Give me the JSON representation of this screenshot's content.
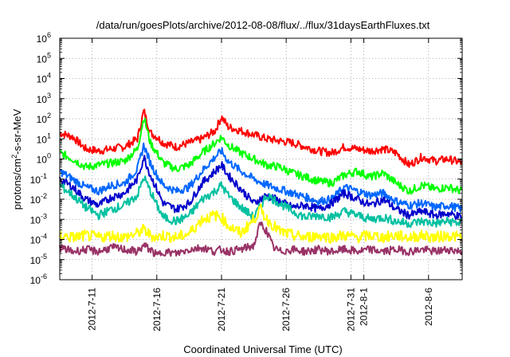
{
  "chart_data": {
    "type": "line",
    "title": "/data/run/goesPlots/archive/2012-08-08/flux/../flux/31daysEarthFluxes.txt",
    "xlabel": "Coordinated Universal Time (UTC)",
    "ylabel": "protons/cm2-s-sr-MeV",
    "ylabel_parts": {
      "pre": "protons/cm",
      "sup": "2",
      "post": "-s-sr-MeV"
    },
    "y_scale": "log",
    "ylim_exp": [
      -6,
      6
    ],
    "y_ticks": [
      {
        "exp": -6,
        "label": "-6"
      },
      {
        "exp": -5,
        "label": "-5"
      },
      {
        "exp": -4,
        "label": "-4"
      },
      {
        "exp": -3,
        "label": "-3"
      },
      {
        "exp": -2,
        "label": "-2"
      },
      {
        "exp": -1,
        "label": "-1"
      },
      {
        "exp": 0,
        "label": "0"
      },
      {
        "exp": 1,
        "label": "1"
      },
      {
        "exp": 2,
        "label": "2"
      },
      {
        "exp": 3,
        "label": "3"
      },
      {
        "exp": 4,
        "label": "4"
      },
      {
        "exp": 5,
        "label": "5"
      },
      {
        "exp": 6,
        "label": "6"
      }
    ],
    "y_tick_base": "10",
    "xlim_day": [
      8.5,
      39.6
    ],
    "x_ticks": [
      {
        "day": 11,
        "label": "2012-7-11"
      },
      {
        "day": 16,
        "label": "2012-7-16"
      },
      {
        "day": 21,
        "label": "2012-7-21"
      },
      {
        "day": 26,
        "label": "2012-7-26"
      },
      {
        "day": 31,
        "label": "2012-7-31"
      },
      {
        "day": 32,
        "label": "2012-8-1"
      },
      {
        "day": 37,
        "label": "2012-8-6"
      }
    ],
    "grid": true,
    "series": [
      {
        "color": "#ff0000",
        "log_values": [
          [
            8.5,
            1.3
          ],
          [
            9.5,
            1.1
          ],
          [
            10.5,
            0.5
          ],
          [
            11.5,
            0.4
          ],
          [
            12.5,
            0.5
          ],
          [
            13.5,
            0.6
          ],
          [
            14.5,
            1.0
          ],
          [
            15.0,
            2.4
          ],
          [
            15.5,
            1.3
          ],
          [
            16.0,
            1.1
          ],
          [
            16.5,
            0.8
          ],
          [
            17.5,
            0.6
          ],
          [
            18.5,
            0.8
          ],
          [
            19.5,
            1.0
          ],
          [
            20.5,
            1.4
          ],
          [
            21.0,
            2.1
          ],
          [
            21.5,
            1.6
          ],
          [
            22.5,
            1.4
          ],
          [
            23.5,
            1.2
          ],
          [
            24.5,
            1.0
          ],
          [
            25.5,
            0.9
          ],
          [
            26.5,
            0.8
          ],
          [
            27.5,
            0.6
          ],
          [
            28.5,
            0.4
          ],
          [
            29.5,
            0.3
          ],
          [
            30.5,
            0.6
          ],
          [
            31.5,
            0.5
          ],
          [
            32.5,
            0.4
          ],
          [
            33.5,
            0.5
          ],
          [
            34.5,
            0.3
          ],
          [
            35.5,
            -0.3
          ],
          [
            36.5,
            0.1
          ],
          [
            37.5,
            -0.1
          ],
          [
            38.5,
            0.0
          ],
          [
            39.6,
            -0.2
          ]
        ]
      },
      {
        "color": "#00ff00",
        "log_values": [
          [
            8.5,
            0.3
          ],
          [
            9.5,
            0.0
          ],
          [
            10.5,
            -0.4
          ],
          [
            11.5,
            -0.3
          ],
          [
            12.5,
            -0.2
          ],
          [
            13.5,
            -0.1
          ],
          [
            14.5,
            0.5
          ],
          [
            15.0,
            2.1
          ],
          [
            15.5,
            0.8
          ],
          [
            16.0,
            0.3
          ],
          [
            16.5,
            -0.2
          ],
          [
            17.5,
            -0.5
          ],
          [
            18.5,
            -0.3
          ],
          [
            19.5,
            0.3
          ],
          [
            20.5,
            0.8
          ],
          [
            21.0,
            1.1
          ],
          [
            21.5,
            0.7
          ],
          [
            22.5,
            0.3
          ],
          [
            23.5,
            0.0
          ],
          [
            24.5,
            -0.3
          ],
          [
            25.5,
            -0.4
          ],
          [
            26.5,
            -0.7
          ],
          [
            27.5,
            -0.9
          ],
          [
            28.5,
            -1.1
          ],
          [
            29.5,
            -1.2
          ],
          [
            30.5,
            -0.8
          ],
          [
            31.5,
            -0.6
          ],
          [
            32.5,
            -0.9
          ],
          [
            33.5,
            -0.7
          ],
          [
            34.5,
            -1.2
          ],
          [
            35.5,
            -1.6
          ],
          [
            36.5,
            -1.3
          ],
          [
            37.5,
            -1.5
          ],
          [
            38.5,
            -1.4
          ],
          [
            39.6,
            -1.6
          ]
        ]
      },
      {
        "color": "#0066ff",
        "log_values": [
          [
            8.5,
            -0.6
          ],
          [
            9.5,
            -1.0
          ],
          [
            10.5,
            -1.4
          ],
          [
            11.5,
            -1.6
          ],
          [
            12.5,
            -1.3
          ],
          [
            13.5,
            -1.2
          ],
          [
            14.5,
            -0.5
          ],
          [
            15.0,
            0.7
          ],
          [
            15.5,
            -0.2
          ],
          [
            16.0,
            -0.8
          ],
          [
            16.5,
            -1.3
          ],
          [
            17.5,
            -1.6
          ],
          [
            18.5,
            -1.4
          ],
          [
            19.5,
            -0.6
          ],
          [
            20.5,
            0.1
          ],
          [
            21.0,
            0.4
          ],
          [
            21.5,
            -0.1
          ],
          [
            22.5,
            -0.6
          ],
          [
            23.5,
            -1.0
          ],
          [
            24.5,
            -1.3
          ],
          [
            25.5,
            -1.5
          ],
          [
            26.5,
            -1.7
          ],
          [
            27.5,
            -1.9
          ],
          [
            28.5,
            -2.1
          ],
          [
            29.5,
            -2.0
          ],
          [
            30.5,
            -1.4
          ],
          [
            31.5,
            -1.6
          ],
          [
            32.5,
            -1.8
          ],
          [
            33.5,
            -1.7
          ],
          [
            34.5,
            -2.1
          ],
          [
            35.5,
            -2.3
          ],
          [
            36.5,
            -2.2
          ],
          [
            37.5,
            -2.4
          ],
          [
            38.5,
            -2.3
          ],
          [
            39.6,
            -2.5
          ]
        ]
      },
      {
        "color": "#0000cc",
        "log_values": [
          [
            8.5,
            -1.0
          ],
          [
            9.5,
            -1.4
          ],
          [
            10.5,
            -2.0
          ],
          [
            11.5,
            -2.3
          ],
          [
            12.5,
            -1.9
          ],
          [
            13.5,
            -1.7
          ],
          [
            14.5,
            -1.0
          ],
          [
            15.0,
            0.1
          ],
          [
            15.5,
            -0.8
          ],
          [
            16.0,
            -1.5
          ],
          [
            16.5,
            -2.2
          ],
          [
            17.5,
            -2.5
          ],
          [
            18.5,
            -2.2
          ],
          [
            19.5,
            -1.2
          ],
          [
            20.5,
            -0.6
          ],
          [
            21.0,
            -0.3
          ],
          [
            21.5,
            -0.8
          ],
          [
            22.5,
            -1.5
          ],
          [
            23.5,
            -2.2
          ],
          [
            24.5,
            -1.8
          ],
          [
            25.5,
            -2.1
          ],
          [
            26.5,
            -2.4
          ],
          [
            27.5,
            -2.3
          ],
          [
            28.5,
            -2.5
          ],
          [
            29.5,
            -2.2
          ],
          [
            30.5,
            -1.7
          ],
          [
            31.5,
            -2.0
          ],
          [
            32.5,
            -2.3
          ],
          [
            33.5,
            -2.0
          ],
          [
            34.5,
            -2.5
          ],
          [
            35.5,
            -2.8
          ],
          [
            36.5,
            -2.6
          ],
          [
            37.5,
            -2.8
          ],
          [
            38.5,
            -2.7
          ],
          [
            39.6,
            -2.9
          ]
        ]
      },
      {
        "color": "#00c0a0",
        "log_values": [
          [
            8.5,
            -1.3
          ],
          [
            9.5,
            -1.8
          ],
          [
            10.5,
            -2.4
          ],
          [
            11.5,
            -2.8
          ],
          [
            12.5,
            -2.5
          ],
          [
            13.5,
            -2.3
          ],
          [
            14.5,
            -1.8
          ],
          [
            15.0,
            -0.9
          ],
          [
            15.5,
            -1.6
          ],
          [
            16.0,
            -2.3
          ],
          [
            16.5,
            -2.9
          ],
          [
            17.5,
            -3.1
          ],
          [
            18.5,
            -2.8
          ],
          [
            19.5,
            -2.0
          ],
          [
            20.5,
            -1.6
          ],
          [
            21.0,
            -1.3
          ],
          [
            21.5,
            -1.8
          ],
          [
            22.5,
            -2.4
          ],
          [
            23.5,
            -2.9
          ],
          [
            24.5,
            -1.8
          ],
          [
            25.5,
            -2.2
          ],
          [
            26.5,
            -2.6
          ],
          [
            27.5,
            -2.9
          ],
          [
            28.5,
            -2.8
          ],
          [
            29.5,
            -2.9
          ],
          [
            30.5,
            -2.6
          ],
          [
            31.5,
            -2.8
          ],
          [
            32.5,
            -3.0
          ],
          [
            33.5,
            -2.9
          ],
          [
            34.5,
            -3.1
          ],
          [
            35.5,
            -3.2
          ],
          [
            36.5,
            -3.1
          ],
          [
            37.5,
            -3.2
          ],
          [
            38.5,
            -3.1
          ],
          [
            39.6,
            -3.2
          ]
        ]
      },
      {
        "color": "#ffff00",
        "log_values": [
          [
            8.5,
            -3.8
          ],
          [
            9.5,
            -3.9
          ],
          [
            10.5,
            -3.8
          ],
          [
            11.5,
            -3.9
          ],
          [
            12.5,
            -3.8
          ],
          [
            13.5,
            -3.9
          ],
          [
            14.5,
            -3.7
          ],
          [
            15.0,
            -3.5
          ],
          [
            15.5,
            -3.8
          ],
          [
            16.0,
            -3.9
          ],
          [
            16.5,
            -3.8
          ],
          [
            17.5,
            -3.9
          ],
          [
            18.5,
            -3.7
          ],
          [
            19.5,
            -3.0
          ],
          [
            20.5,
            -2.8
          ],
          [
            21.0,
            -2.9
          ],
          [
            21.5,
            -3.3
          ],
          [
            22.5,
            -3.7
          ],
          [
            23.5,
            -3.0
          ],
          [
            24.0,
            -2.5
          ],
          [
            24.5,
            -3.0
          ],
          [
            25.5,
            -3.6
          ],
          [
            26.5,
            -3.8
          ],
          [
            27.5,
            -3.9
          ],
          [
            28.5,
            -3.8
          ],
          [
            29.5,
            -3.9
          ],
          [
            30.5,
            -3.8
          ],
          [
            31.5,
            -3.9
          ],
          [
            32.5,
            -3.8
          ],
          [
            33.5,
            -3.9
          ],
          [
            34.5,
            -3.8
          ],
          [
            35.5,
            -3.9
          ],
          [
            36.5,
            -3.8
          ],
          [
            37.5,
            -3.9
          ],
          [
            38.5,
            -3.8
          ],
          [
            39.6,
            -3.9
          ]
        ]
      },
      {
        "color": "#993366",
        "log_values": [
          [
            8.5,
            -4.4
          ],
          [
            9.5,
            -4.6
          ],
          [
            10.5,
            -4.5
          ],
          [
            11.5,
            -4.6
          ],
          [
            12.5,
            -4.4
          ],
          [
            13.5,
            -4.5
          ],
          [
            14.5,
            -4.6
          ],
          [
            15.0,
            -4.3
          ],
          [
            15.5,
            -4.5
          ],
          [
            16.0,
            -4.8
          ],
          [
            16.5,
            -4.6
          ],
          [
            17.5,
            -4.7
          ],
          [
            18.5,
            -4.5
          ],
          [
            19.5,
            -4.4
          ],
          [
            20.5,
            -4.6
          ],
          [
            21.0,
            -4.5
          ],
          [
            21.5,
            -4.6
          ],
          [
            22.5,
            -4.5
          ],
          [
            23.5,
            -4.3
          ],
          [
            24.0,
            -3.2
          ],
          [
            24.5,
            -3.6
          ],
          [
            25.0,
            -4.4
          ],
          [
            25.5,
            -4.6
          ],
          [
            26.5,
            -4.5
          ],
          [
            27.5,
            -4.6
          ],
          [
            28.5,
            -4.5
          ],
          [
            29.5,
            -4.6
          ],
          [
            30.5,
            -4.5
          ],
          [
            31.5,
            -4.6
          ],
          [
            32.5,
            -4.5
          ],
          [
            33.5,
            -4.6
          ],
          [
            34.5,
            -4.5
          ],
          [
            35.5,
            -4.6
          ],
          [
            36.5,
            -4.5
          ],
          [
            37.5,
            -4.6
          ],
          [
            38.5,
            -4.5
          ],
          [
            39.6,
            -4.6
          ]
        ]
      }
    ]
  }
}
